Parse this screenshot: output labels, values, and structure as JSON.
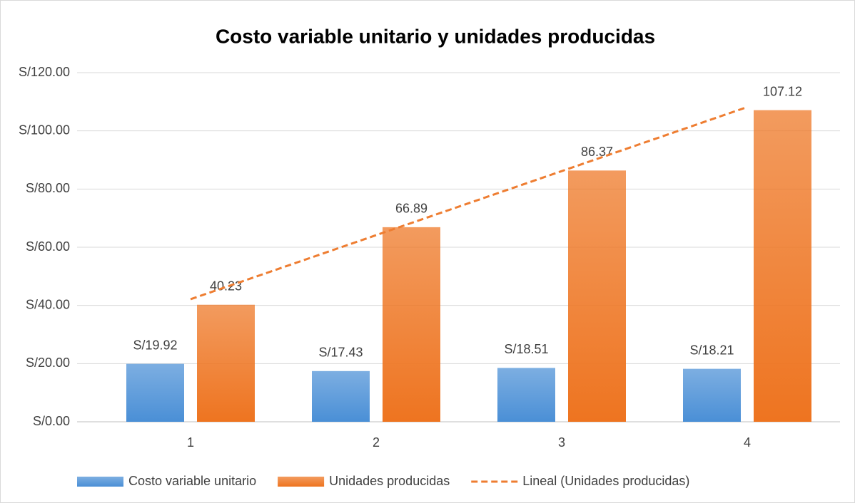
{
  "chart_data": {
    "type": "bar",
    "title": "Costo variable unitario y unidades producidas",
    "categories": [
      "1",
      "2",
      "3",
      "4"
    ],
    "series": [
      {
        "name": "Costo variable unitario",
        "color": "#4a8fd6",
        "values": [
          19.92,
          17.43,
          18.51,
          18.21
        ],
        "value_labels": [
          "S/19.92",
          "S/17.43",
          "S/18.51",
          "S/18.21"
        ]
      },
      {
        "name": "Unidades producidas",
        "color": "#ee7420",
        "values": [
          40.23,
          66.89,
          86.37,
          107.12
        ]
      },
      {
        "name": "Lineal (Unidades producidas)",
        "color": "#ee7d31",
        "type": "line",
        "dashed": true,
        "values": [
          42.13,
          64.15,
          86.16,
          108.18
        ]
      }
    ],
    "ylim": [
      0,
      120
    ],
    "yticks": [
      {
        "value": 0,
        "label": "S/0.00"
      },
      {
        "value": 20,
        "label": "S/20.00"
      },
      {
        "value": 40,
        "label": "S/40.00"
      },
      {
        "value": 60,
        "label": "S/60.00"
      },
      {
        "value": 80,
        "label": "S/80.00"
      },
      {
        "value": 100,
        "label": "S/100.00"
      },
      {
        "value": 120,
        "label": "S/120.00"
      }
    ],
    "grid": true,
    "legend": "bottom"
  }
}
